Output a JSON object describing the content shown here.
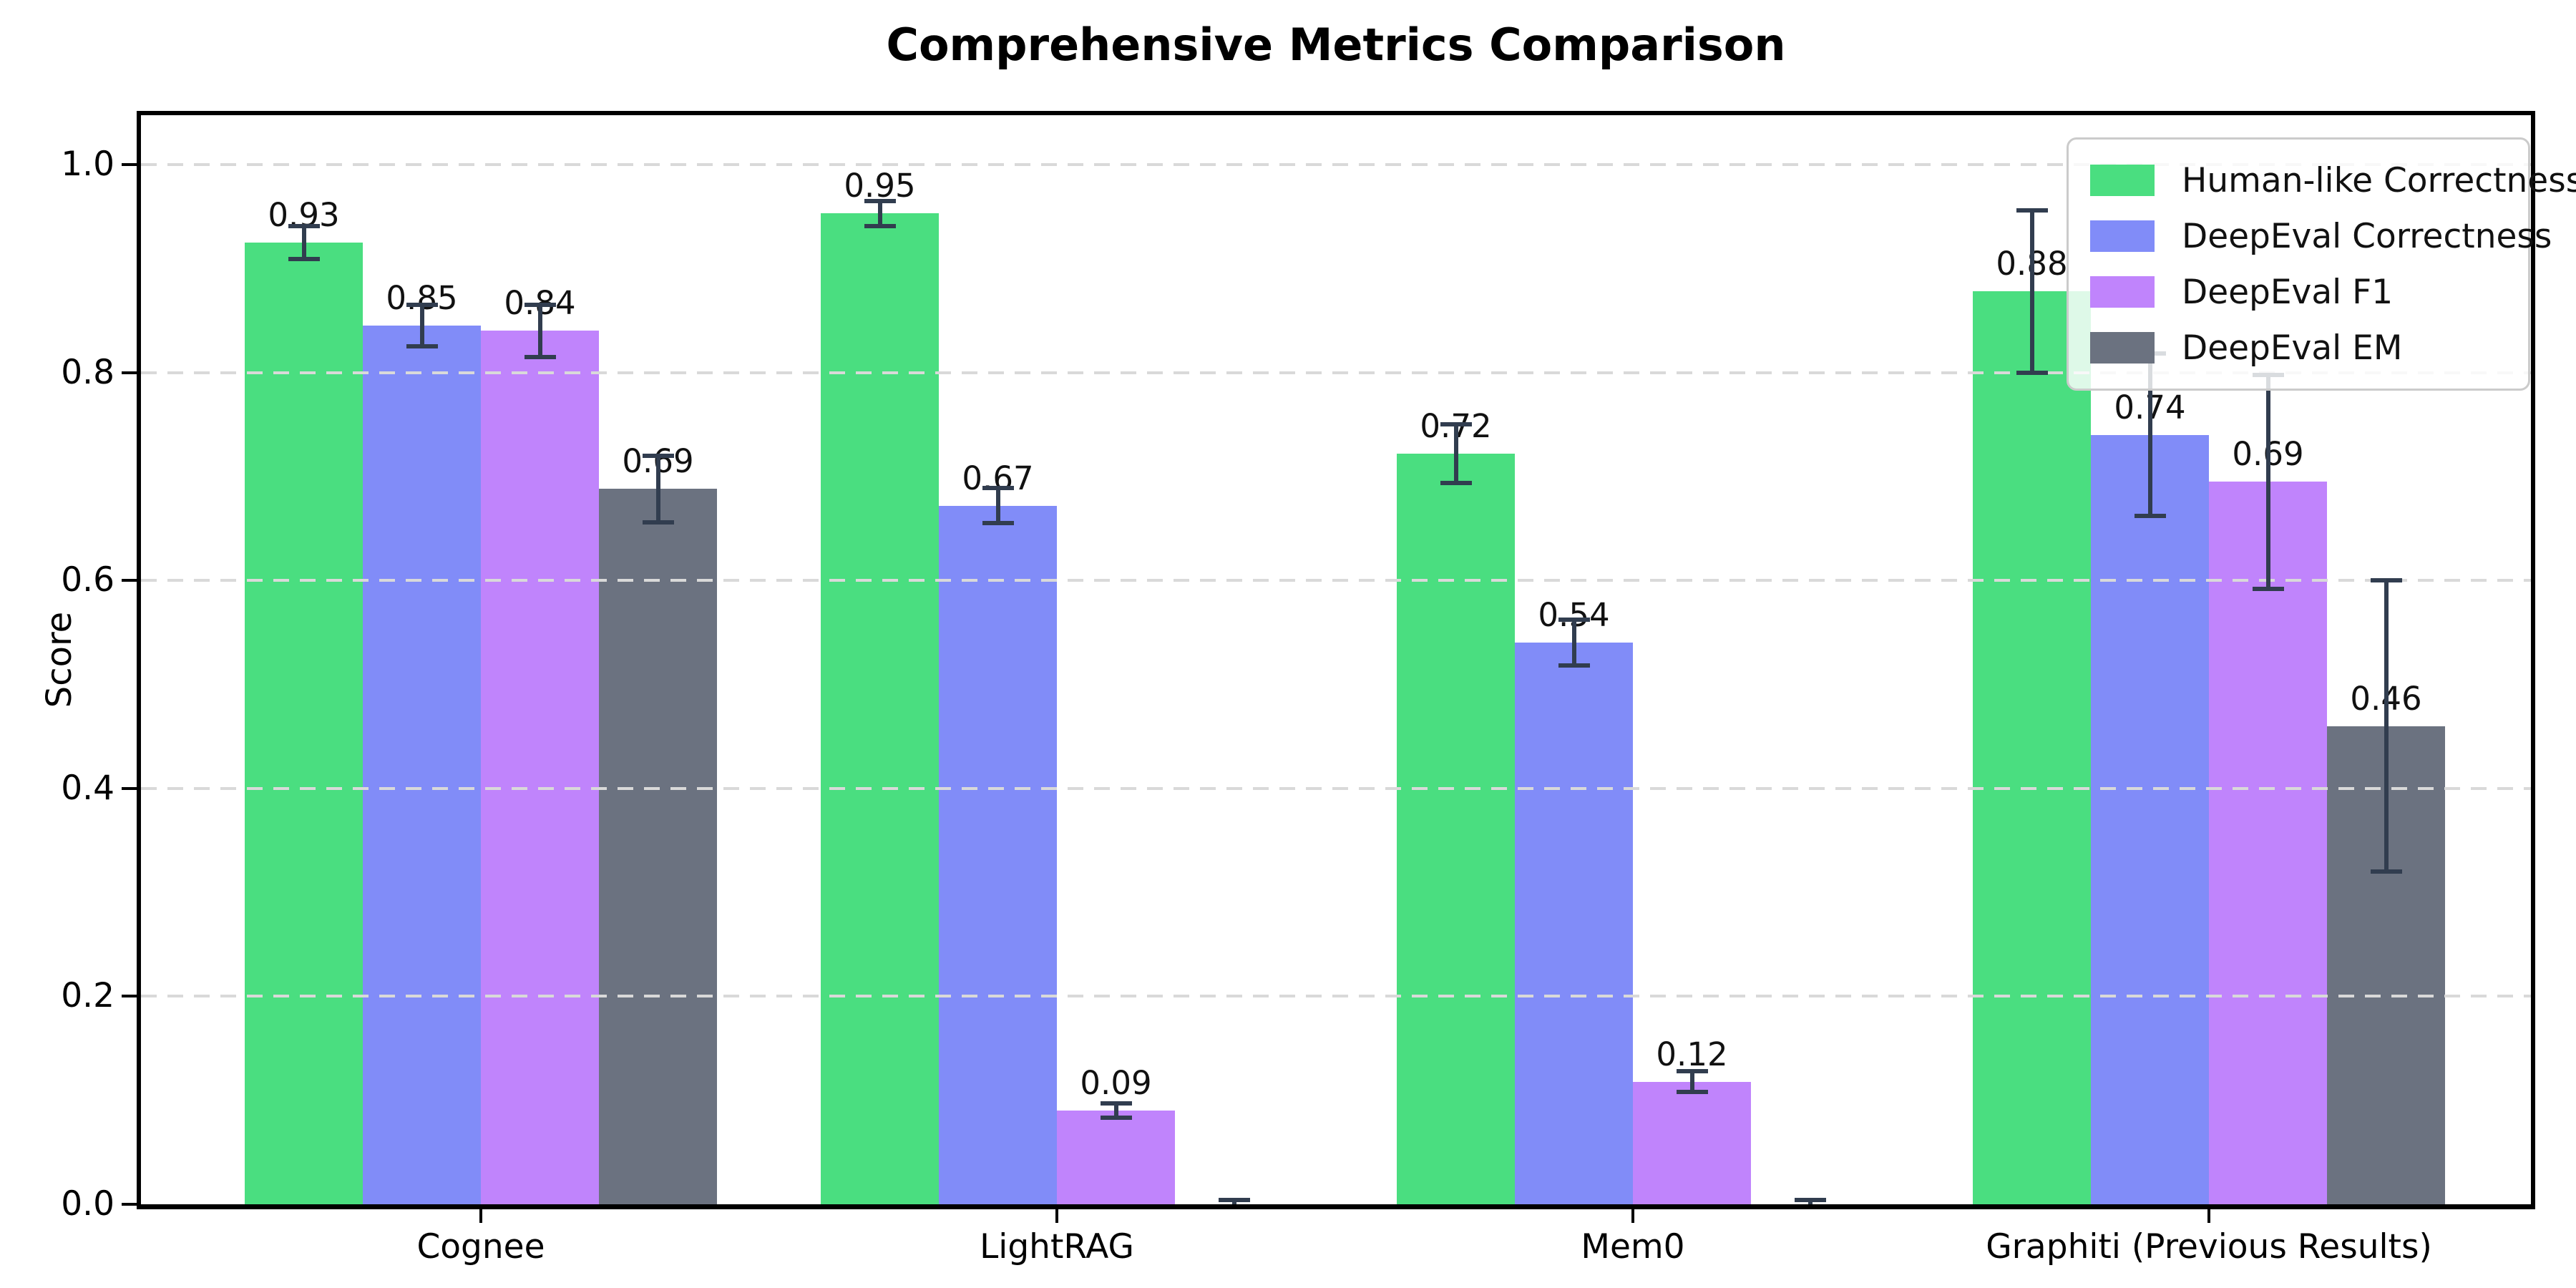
{
  "chart_data": {
    "type": "bar",
    "title": "Comprehensive Metrics Comparison",
    "xlabel": "",
    "ylabel": "Score",
    "ylim": [
      0.0,
      1.048
    ],
    "grid": "horizontal dashed",
    "legend_position": "upper right",
    "yticks": [
      {
        "v": 0.0,
        "label": "0.0"
      },
      {
        "v": 0.2,
        "label": "0.2"
      },
      {
        "v": 0.4,
        "label": "0.4"
      },
      {
        "v": 0.6,
        "label": "0.6"
      },
      {
        "v": 0.8,
        "label": "0.8"
      },
      {
        "v": 1.0,
        "label": "1.0"
      }
    ],
    "categories": [
      "Cognee",
      "LightRAG",
      "Mem0",
      "Graphiti (Previous Results)"
    ],
    "series": [
      {
        "name": "Human-like Correctness",
        "color": "#4ade80",
        "values": [
          0.925,
          0.953,
          0.722,
          0.878
        ],
        "errors": [
          0.016,
          0.012,
          0.028,
          0.078
        ],
        "labels": [
          "0.93",
          "0.95",
          "0.72",
          "0.88"
        ]
      },
      {
        "name": "DeepEval Correctness",
        "color": "#818cf8",
        "values": [
          0.845,
          0.672,
          0.54,
          0.74
        ],
        "errors": [
          0.02,
          0.017,
          0.022,
          0.078
        ],
        "labels": [
          "0.85",
          "0.67",
          "0.54",
          "0.74"
        ]
      },
      {
        "name": "DeepEval F1",
        "color": "#c084fc",
        "values": [
          0.84,
          0.09,
          0.118,
          0.695
        ],
        "errors": [
          0.025,
          0.007,
          0.01,
          0.103
        ],
        "labels": [
          "0.84",
          "0.09",
          "0.12",
          "0.69"
        ]
      },
      {
        "name": "DeepEval EM",
        "color": "#6b7280",
        "values": [
          0.688,
          0.0,
          0.0,
          0.46
        ],
        "errors": [
          0.032,
          0.004,
          0.004,
          0.14
        ],
        "labels": [
          "0.69",
          "",
          "",
          "0.46"
        ]
      }
    ],
    "errorbar_color": "#313d4f",
    "axis_color": "#000000",
    "gridline_color": "#d9d9d9"
  }
}
